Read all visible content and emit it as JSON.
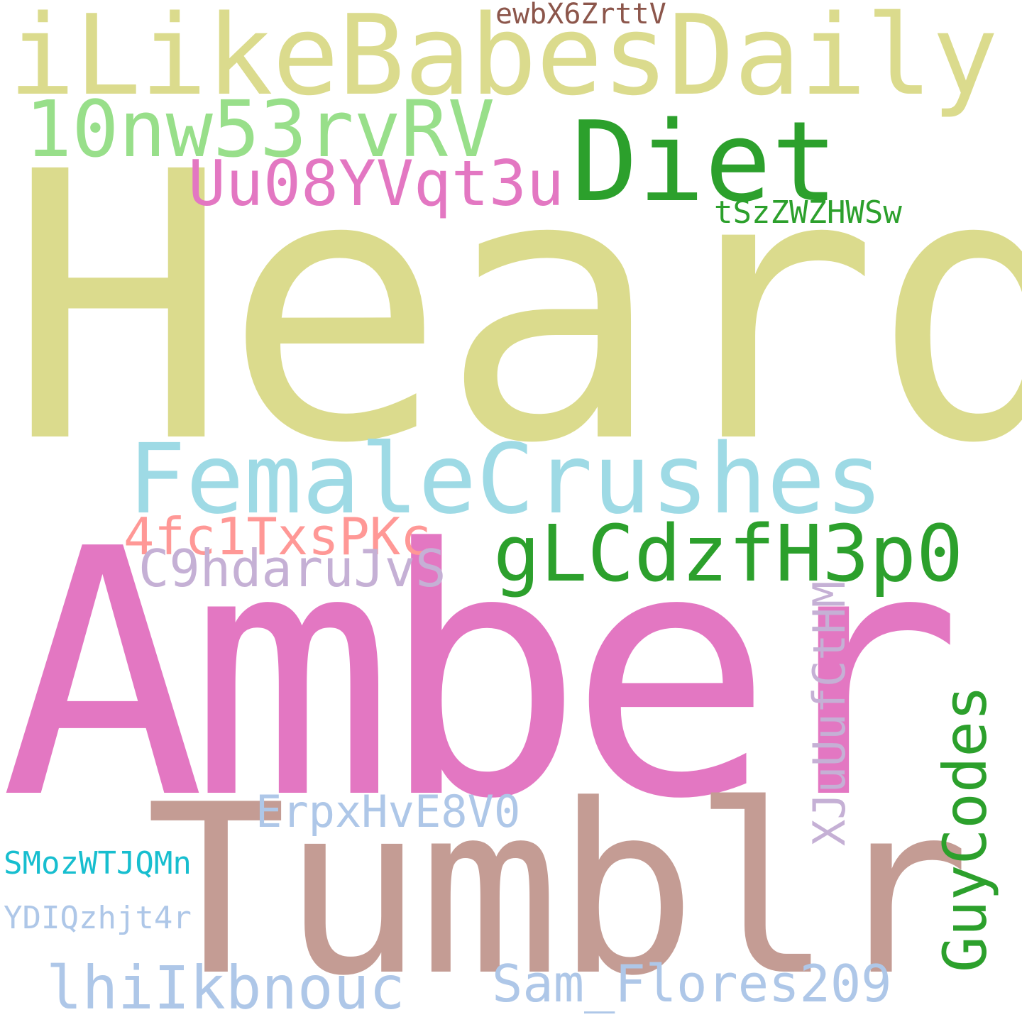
{
  "words": [
    {
      "id": "word-heard",
      "text": "Heard",
      "color": "#dbdb8d"
    },
    {
      "id": "word-amber",
      "text": "Amber",
      "color": "#e377c2"
    },
    {
      "id": "word-tumblr",
      "text": "Tumblr",
      "color": "#c49c94"
    },
    {
      "id": "word-ilikebabesdaily",
      "text": "iLikeBabesDaily",
      "color": "#dbdb8d"
    },
    {
      "id": "word-femalecrushes",
      "text": "FemaleCrushes",
      "color": "#9edae5"
    },
    {
      "id": "word-diet",
      "text": "Diet",
      "color": "#2ca02c"
    },
    {
      "id": "word-10nw53rvrv",
      "text": "10nw53rvRV",
      "color": "#98df8a"
    },
    {
      "id": "word-glcdzfh3p0",
      "text": "gLCdzfH3p0",
      "color": "#2ca02c"
    },
    {
      "id": "word-uu08yvqt3u",
      "text": "Uu08YVqt3u",
      "color": "#e377c2"
    },
    {
      "id": "word-guycodes",
      "text": "GuyCodes",
      "color": "#2ca02c"
    },
    {
      "id": "word-4fc1txspkc",
      "text": "4fc1TxsPKc",
      "color": "#ff9896"
    },
    {
      "id": "word-c9hdarujvs",
      "text": "C9hdaruJvS",
      "color": "#c5b0d5"
    },
    {
      "id": "word-lhiikbnouc",
      "text": "lhiIkbnouc",
      "color": "#aec7e8"
    },
    {
      "id": "word-sam-flores209",
      "text": "Sam_Flores209",
      "color": "#aec7e8"
    },
    {
      "id": "word-xjuuufcthm",
      "text": "XJuUufCtHM",
      "color": "#c5b0d5"
    },
    {
      "id": "word-erpxhve8v0",
      "text": "ErpxHvE8V0",
      "color": "#aec7e8"
    },
    {
      "id": "word-ewbx6zrttv",
      "text": "ewbX6ZrttV",
      "color": "#8c564b"
    },
    {
      "id": "word-tszzwzhwsw",
      "text": "tSzZWZHWSw",
      "color": "#2ca02c"
    },
    {
      "id": "word-smozwtjqmn",
      "text": "SMozWTJQMn",
      "color": "#17becf"
    },
    {
      "id": "word-ydiqzhjt4r",
      "text": "YDIQzhjt4r",
      "color": "#aec7e8"
    }
  ]
}
